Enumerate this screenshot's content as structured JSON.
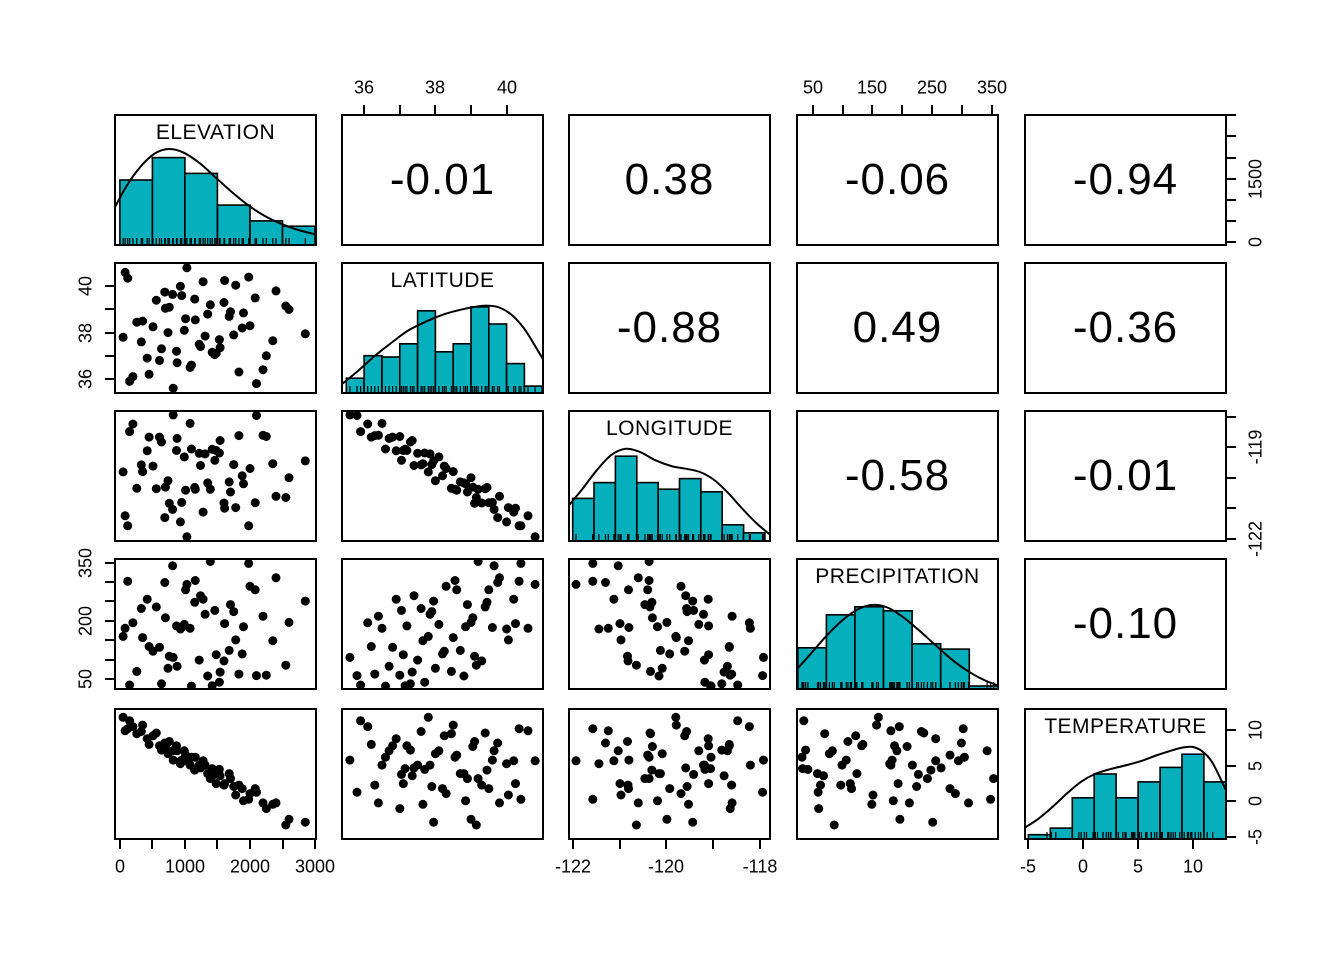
{
  "chart_data": {
    "type": "scatterplot-matrix",
    "description": "pairs plot: histograms with density curves and rug marks on diagonal, scatterplots in lower triangle, Pearson correlations in upper triangle",
    "variables": [
      "ELEVATION",
      "LATITUDE",
      "LONGITUDE",
      "PRECIPITATION",
      "TEMPERATURE"
    ],
    "correlation_labels": [
      [
        "",
        "-0.01",
        "0.38",
        "-0.06",
        "-0.94"
      ],
      [
        "",
        "",
        "-0.88",
        "0.49",
        "-0.36"
      ],
      [
        "",
        "",
        "",
        "-0.58",
        "-0.01"
      ],
      [
        "",
        "",
        "",
        "",
        "-0.10"
      ],
      [
        "",
        "",
        "",
        "",
        ""
      ]
    ],
    "colors": {
      "bar_fill": "#06AFBC",
      "bar_stroke": "#000000",
      "point": "#000000",
      "panel_border": "#000000",
      "background": "#FFFFFF",
      "density_line": "#000000"
    },
    "ranges": {
      "ELEVATION": [
        -90,
        3030
      ],
      "LATITUDE": [
        35.35,
        41.05
      ],
      "LONGITUDE": [
        -122.1,
        -117.77
      ],
      "PRECIPITATION": [
        22,
        362
      ],
      "TEMPERATURE": [
        -5.4,
        13.1
      ]
    },
    "histograms": {
      "ELEVATION": {
        "from": 0,
        "to": 3000,
        "heights": [
          0.5,
          0.67,
          0.55,
          0.31,
          0.19,
          0.15
        ],
        "density": [
          [
            0,
            0.28
          ],
          [
            0.06,
            0.45
          ],
          [
            0.13,
            0.6
          ],
          [
            0.2,
            0.7
          ],
          [
            0.27,
            0.735
          ],
          [
            0.34,
            0.71
          ],
          [
            0.42,
            0.63
          ],
          [
            0.5,
            0.52
          ],
          [
            0.58,
            0.41
          ],
          [
            0.66,
            0.31
          ],
          [
            0.74,
            0.23
          ],
          [
            0.82,
            0.17
          ],
          [
            0.9,
            0.125
          ],
          [
            1,
            0.085
          ]
        ]
      },
      "LATITUDE": {
        "from": 35.5,
        "to": 41.0,
        "heights": [
          0.12,
          0.29,
          0.28,
          0.38,
          0.63,
          0.32,
          0.38,
          0.66,
          0.53,
          0.23,
          0.06
        ],
        "density": [
          [
            0,
            0.07
          ],
          [
            0.08,
            0.17
          ],
          [
            0.16,
            0.28
          ],
          [
            0.25,
            0.39
          ],
          [
            0.33,
            0.48
          ],
          [
            0.42,
            0.55
          ],
          [
            0.5,
            0.6
          ],
          [
            0.58,
            0.635
          ],
          [
            0.66,
            0.66
          ],
          [
            0.72,
            0.67
          ],
          [
            0.78,
            0.655
          ],
          [
            0.84,
            0.6
          ],
          [
            0.9,
            0.5
          ],
          [
            0.95,
            0.38
          ],
          [
            1,
            0.25
          ]
        ]
      },
      "LONGITUDE": {
        "from": -122.0,
        "to": -117.9,
        "heights": [
          0.33,
          0.45,
          0.65,
          0.45,
          0.4,
          0.48,
          0.38,
          0.13,
          0.07
        ],
        "density": [
          [
            0,
            0.27
          ],
          [
            0.07,
            0.4
          ],
          [
            0.14,
            0.54
          ],
          [
            0.21,
            0.655
          ],
          [
            0.28,
            0.705
          ],
          [
            0.35,
            0.685
          ],
          [
            0.43,
            0.62
          ],
          [
            0.51,
            0.575
          ],
          [
            0.58,
            0.555
          ],
          [
            0.65,
            0.53
          ],
          [
            0.72,
            0.47
          ],
          [
            0.79,
            0.37
          ],
          [
            0.86,
            0.25
          ],
          [
            0.93,
            0.14
          ],
          [
            1,
            0.05
          ]
        ]
      },
      "PRECIPITATION": {
        "from": 25,
        "to": 360,
        "heights": [
          0.32,
          0.57,
          0.63,
          0.6,
          0.35,
          0.31,
          0.03
        ],
        "density": [
          [
            0,
            0.15
          ],
          [
            0.07,
            0.27
          ],
          [
            0.15,
            0.41
          ],
          [
            0.23,
            0.53
          ],
          [
            0.31,
            0.615
          ],
          [
            0.38,
            0.645
          ],
          [
            0.45,
            0.625
          ],
          [
            0.52,
            0.56
          ],
          [
            0.6,
            0.46
          ],
          [
            0.68,
            0.35
          ],
          [
            0.76,
            0.24
          ],
          [
            0.84,
            0.15
          ],
          [
            0.92,
            0.08
          ],
          [
            1,
            0.03
          ]
        ]
      },
      "TEMPERATURE": {
        "from": -5,
        "to": 13,
        "heights": [
          0.04,
          0.09,
          0.32,
          0.5,
          0.32,
          0.44,
          0.55,
          0.65,
          0.44
        ],
        "density": [
          [
            0,
            0.09
          ],
          [
            0.07,
            0.16
          ],
          [
            0.14,
            0.25
          ],
          [
            0.21,
            0.35
          ],
          [
            0.28,
            0.44
          ],
          [
            0.35,
            0.5
          ],
          [
            0.42,
            0.535
          ],
          [
            0.5,
            0.565
          ],
          [
            0.58,
            0.6
          ],
          [
            0.65,
            0.64
          ],
          [
            0.72,
            0.675
          ],
          [
            0.78,
            0.7
          ],
          [
            0.83,
            0.705
          ],
          [
            0.88,
            0.67
          ],
          [
            0.93,
            0.58
          ],
          [
            1,
            0.36
          ]
        ]
      }
    },
    "axes": [
      {
        "side": "top",
        "col": 1,
        "variable": "LATITUDE",
        "ticks": [
          {
            "v": 36,
            "label": "36"
          },
          {
            "v": 37,
            "label": ""
          },
          {
            "v": 38,
            "label": "38"
          },
          {
            "v": 39,
            "label": ""
          },
          {
            "v": 40,
            "label": "40"
          }
        ]
      },
      {
        "side": "top",
        "col": 3,
        "variable": "PRECIPITATION",
        "ticks": [
          {
            "v": 50,
            "label": "50"
          },
          {
            "v": 100,
            "label": ""
          },
          {
            "v": 150,
            "label": "150"
          },
          {
            "v": 200,
            "label": ""
          },
          {
            "v": 250,
            "label": "250"
          },
          {
            "v": 300,
            "label": ""
          },
          {
            "v": 350,
            "label": "350"
          }
        ]
      },
      {
        "side": "right",
        "row": 0,
        "variable": "ELEVATION",
        "ticks": [
          {
            "v": 0,
            "label": "0"
          },
          {
            "v": 500,
            "label": ""
          },
          {
            "v": 1000,
            "label": ""
          },
          {
            "v": 1500,
            "label": "1500"
          },
          {
            "v": 2000,
            "label": ""
          },
          {
            "v": 2500,
            "label": ""
          },
          {
            "v": 3000,
            "label": ""
          }
        ]
      },
      {
        "side": "right",
        "row": 2,
        "variable": "LONGITUDE",
        "ticks": [
          {
            "v": -122,
            "label": "-122"
          },
          {
            "v": -121,
            "label": ""
          },
          {
            "v": -120,
            "label": ""
          },
          {
            "v": -119,
            "label": "-119"
          },
          {
            "v": -118,
            "label": ""
          }
        ]
      },
      {
        "side": "right",
        "row": 4,
        "variable": "TEMPERATURE",
        "ticks": [
          {
            "v": -5,
            "label": "-5"
          },
          {
            "v": 0,
            "label": "0"
          },
          {
            "v": 5,
            "label": "5"
          },
          {
            "v": 10,
            "label": "10"
          }
        ]
      },
      {
        "side": "left",
        "row": 1,
        "variable": "LATITUDE",
        "ticks": [
          {
            "v": 36,
            "label": "36"
          },
          {
            "v": 37,
            "label": ""
          },
          {
            "v": 38,
            "label": "38"
          },
          {
            "v": 39,
            "label": ""
          },
          {
            "v": 40,
            "label": "40"
          }
        ]
      },
      {
        "side": "left",
        "row": 3,
        "variable": "PRECIPITATION",
        "ticks": [
          {
            "v": 50,
            "label": "50"
          },
          {
            "v": 100,
            "label": ""
          },
          {
            "v": 150,
            "label": ""
          },
          {
            "v": 200,
            "label": "200"
          },
          {
            "v": 250,
            "label": ""
          },
          {
            "v": 300,
            "label": ""
          },
          {
            "v": 350,
            "label": "350"
          }
        ]
      },
      {
        "side": "bottom",
        "col": 0,
        "variable": "ELEVATION",
        "ticks": [
          {
            "v": 0,
            "label": "0"
          },
          {
            "v": 500,
            "label": ""
          },
          {
            "v": 1000,
            "label": "1000"
          },
          {
            "v": 1500,
            "label": ""
          },
          {
            "v": 2000,
            "label": "2000"
          },
          {
            "v": 2500,
            "label": ""
          },
          {
            "v": 3000,
            "label": "3000"
          }
        ]
      },
      {
        "side": "bottom",
        "col": 2,
        "variable": "LONGITUDE",
        "ticks": [
          {
            "v": -122,
            "label": "-122"
          },
          {
            "v": -121,
            "label": ""
          },
          {
            "v": -120,
            "label": "-120"
          },
          {
            "v": -119,
            "label": ""
          },
          {
            "v": -118,
            "label": "-118"
          }
        ]
      },
      {
        "side": "bottom",
        "col": 4,
        "variable": "TEMPERATURE",
        "ticks": [
          {
            "v": -5,
            "label": "-5"
          },
          {
            "v": 0,
            "label": "0"
          },
          {
            "v": 5,
            "label": "5"
          },
          {
            "v": 10,
            "label": "10"
          }
        ]
      }
    ],
    "observations": [
      [
        50,
        37.8,
        -119.8,
        160,
        11.8
      ],
      [
        120,
        40.35,
        -121.57,
        302,
        10.2
      ],
      [
        200,
        36.1,
        -118.23,
        195,
        10.5
      ],
      [
        80,
        40.6,
        -121.24,
        181,
        9.9
      ],
      [
        350,
        38.5,
        -119.79,
        157,
        10.7
      ],
      [
        420,
        36.9,
        -119.11,
        256,
        8.8
      ],
      [
        510,
        38.25,
        -119.61,
        122,
        9.2
      ],
      [
        640,
        37.3,
        -118.82,
        38,
        7.2
      ],
      [
        700,
        39.05,
        -120.3,
        208,
        7.7
      ],
      [
        760,
        39.1,
        -120.83,
        109,
        8.4
      ],
      [
        820,
        35.6,
        -117.93,
        106,
        5.8
      ],
      [
        880,
        36.7,
        -118.7,
        83,
        7.1
      ],
      [
        950,
        39.6,
        -120.8,
        183,
        5.8
      ],
      [
        990,
        38.1,
        -119.31,
        191,
        7.1
      ],
      [
        1030,
        40.8,
        -121.93,
        294,
        5.7
      ],
      [
        1100,
        36.6,
        -119.05,
        32,
        6.2
      ],
      [
        1150,
        39.45,
        -120.31,
        248,
        4.4
      ],
      [
        1220,
        37.5,
        -119.19,
        99,
        5.1
      ],
      [
        1280,
        40.2,
        -121.12,
        256,
        5.7
      ],
      [
        1350,
        38.8,
        -120.16,
        58,
        3.9
      ],
      [
        1420,
        37.15,
        -119.06,
        33,
        4.6
      ],
      [
        1480,
        37.1,
        -119.1,
        113,
        2.5
      ],
      [
        1540,
        37.35,
        -118.77,
        68,
        3.6
      ],
      [
        1600,
        39.3,
        -120.82,
        97,
        2.3
      ],
      [
        1680,
        38.7,
        -120.13,
        124,
        3.9
      ],
      [
        1750,
        37.9,
        -119.56,
        224,
        2.1
      ],
      [
        1830,
        36.3,
        -118.61,
        63,
        2.3
      ],
      [
        1900,
        38.85,
        -120.19,
        185,
        0.1
      ],
      [
        2000,
        38.3,
        -119.69,
        289,
        1.1
      ],
      [
        2100,
        35.8,
        -117.95,
        59,
        1.3
      ],
      [
        2250,
        37.0,
        -118.64,
        60,
        -1.0
      ],
      [
        2400,
        39.8,
        -120.6,
        311,
        -0.2
      ],
      [
        2600,
        39.0,
        -119.99,
        196,
        -2.5
      ],
      [
        2850,
        37.95,
        -119.44,
        251,
        -2.9
      ],
      [
        150,
        35.9,
        -118.48,
        35,
        11.3
      ],
      [
        260,
        38.45,
        -120.34,
        70,
        9.5
      ],
      [
        330,
        37.6,
        -119.57,
        232,
        9.8
      ],
      [
        450,
        36.2,
        -118.66,
        134,
        8.0
      ],
      [
        560,
        39.4,
        -120.35,
        236,
        9.6
      ],
      [
        610,
        36.8,
        -118.66,
        132,
        7.8
      ],
      [
        690,
        39.75,
        -121.3,
        299,
        8.2
      ],
      [
        740,
        38.0,
        -120.09,
        78,
        6.7
      ],
      [
        810,
        39.65,
        -121.03,
        342,
        7.1
      ],
      [
        870,
        37.2,
        -119.1,
        187,
        7.8
      ],
      [
        930,
        40.0,
        -121.44,
        179,
        5.3
      ],
      [
        1010,
        38.6,
        -120.4,
        280,
        6.5
      ],
      [
        1080,
        36.5,
        -118.21,
        181,
        5.1
      ],
      [
        1160,
        38.55,
        -120.37,
        304,
        6.2
      ],
      [
        1240,
        37.4,
        -119.59,
        265,
        4.7
      ],
      [
        1310,
        37.85,
        -119.21,
        217,
        5.1
      ],
      [
        1390,
        39.2,
        -120.37,
        353,
        3.2
      ],
      [
        1460,
        37.05,
        -119.42,
        227,
        3.8
      ],
      [
        1530,
        37.7,
        -119.18,
        42,
        4.5
      ],
      [
        1610,
        40.25,
        -120.99,
        193,
        2.5
      ],
      [
        1700,
        38.9,
        -120.46,
        242,
        3.2
      ],
      [
        1780,
        40.05,
        -120.97,
        151,
        0.9
      ],
      [
        1880,
        38.2,
        -119.93,
        115,
        1.8
      ],
      [
        1980,
        40.4,
        -121.57,
        348,
        0.3
      ],
      [
        2080,
        39.5,
        -120.81,
        280,
        1.8
      ],
      [
        2200,
        36.4,
        -118.6,
        212,
        -0.2
      ],
      [
        2350,
        37.65,
        -119.53,
        149,
        -0.4
      ],
      [
        2550,
        39.15,
        -120.64,
        86,
        -3.3
      ]
    ]
  }
}
